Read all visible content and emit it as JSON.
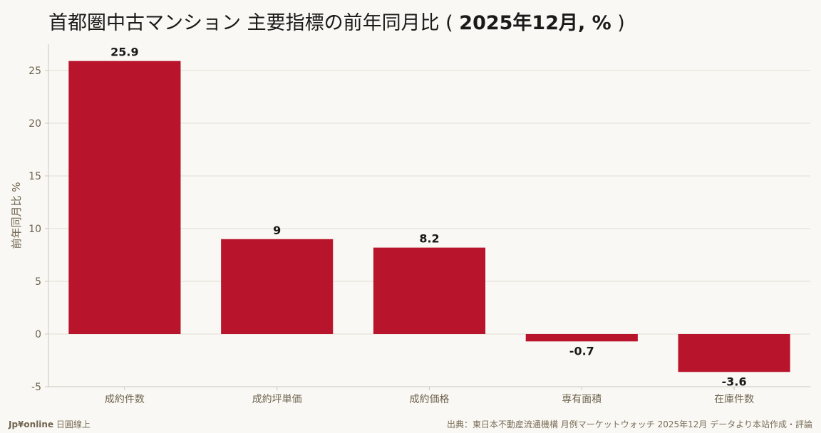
{
  "title": {
    "main": "首都圏中古マンション 主要指標の前年同月比 ( ",
    "period": "2025年12月, %",
    "close": " )"
  },
  "footer": {
    "brand": "Jp¥online",
    "brand_sub": " 日圓線上",
    "source": "出典：東日本不動産流通機構 月例マーケットウォッチ 2025年12月 データより本站作成・評論"
  },
  "colors": {
    "bar": "#b8152c",
    "axis_text": "#6f6450",
    "label_text": "#1a1a1a",
    "grid": "#e3ded4",
    "axis_line": "#cfc8bb"
  },
  "chart_data": {
    "type": "bar",
    "categories": [
      "成約件数",
      "成約坪単価",
      "成約価格",
      "専有面積",
      "在庫件数"
    ],
    "values": [
      25.9,
      9,
      8.2,
      -0.7,
      -3.6
    ],
    "data_labels": [
      "25.9",
      "9",
      "8.2",
      "-0.7",
      "-3.6"
    ],
    "title": "首都圏中古マンション 主要指標の前年同月比 ( 2025年12月, % )",
    "xlabel": "",
    "ylabel": "前年同月比 %",
    "ylim": [
      -5,
      27.5
    ],
    "yticks": [
      -5,
      0,
      5,
      10,
      15,
      20,
      25
    ],
    "grid": true,
    "legend": "none"
  }
}
